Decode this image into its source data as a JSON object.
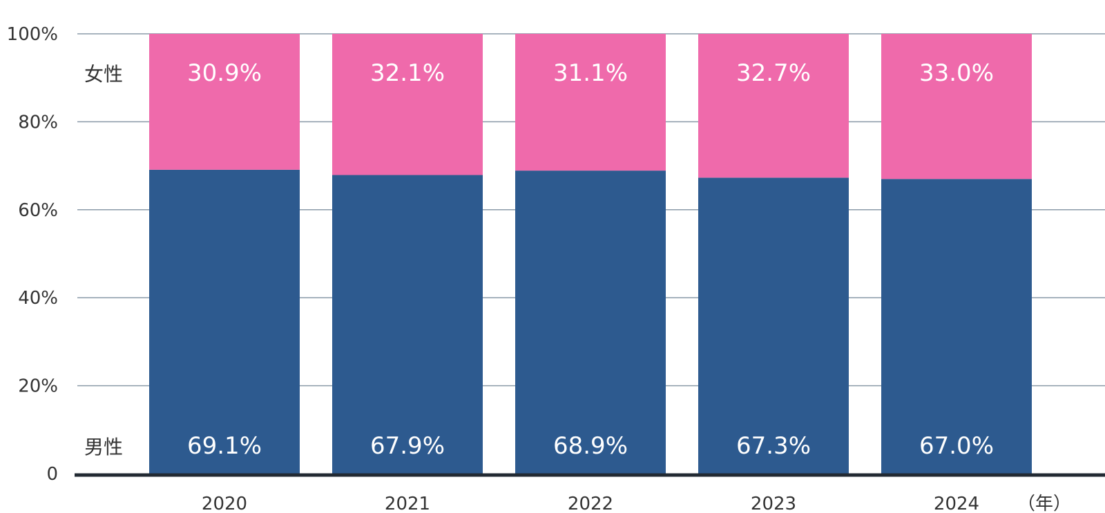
{
  "chart_data": {
    "type": "bar",
    "stacked": true,
    "categories": [
      "2020",
      "2021",
      "2022",
      "2023",
      "2024"
    ],
    "x_unit_label": "（年）",
    "ylim": [
      0,
      100
    ],
    "y_ticks": [
      {
        "value": 0,
        "label": "0"
      },
      {
        "value": 20,
        "label": "20%"
      },
      {
        "value": 40,
        "label": "40%"
      },
      {
        "value": 60,
        "label": "60%"
      },
      {
        "value": 80,
        "label": "80%"
      },
      {
        "value": 100,
        "label": "100%"
      }
    ],
    "grid": true,
    "series": [
      {
        "name": "男性",
        "color": "#2d5a8f",
        "values": [
          69.1,
          67.9,
          68.9,
          67.3,
          67.0
        ],
        "labels": [
          "69.1%",
          "67.9%",
          "68.9%",
          "67.3%",
          "67.0%"
        ]
      },
      {
        "name": "女性",
        "color": "#ef6aab",
        "values": [
          30.9,
          32.1,
          31.1,
          32.7,
          33.0
        ],
        "labels": [
          "30.9%",
          "32.1%",
          "31.1%",
          "32.7%",
          "33.0%"
        ]
      }
    ]
  }
}
